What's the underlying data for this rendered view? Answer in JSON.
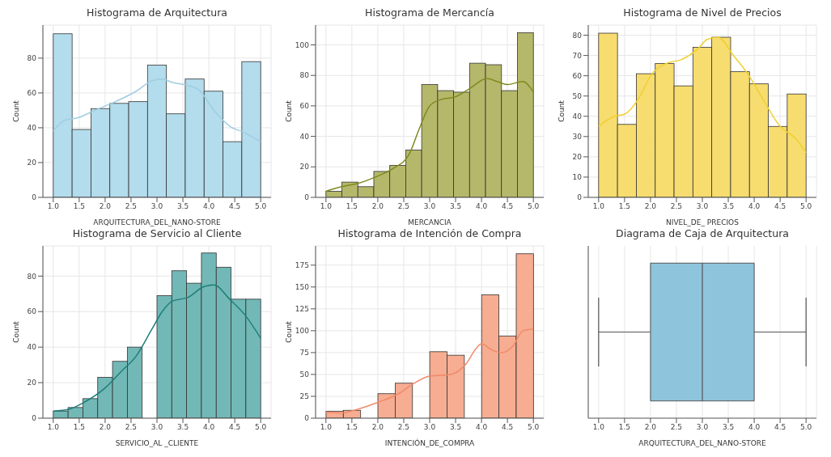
{
  "chart_data": [
    {
      "type": "histogram",
      "title": "Histograma de Arquitectura",
      "xlabel": "ARQUITECTURA_DEL_NANO-STORE",
      "ylabel": "Count",
      "xlim": [
        0.8,
        5.2
      ],
      "xticks": [
        {
          "value": 1,
          "label": "1.0"
        },
        1.5,
        {
          "value": 2,
          "label": "2.0"
        },
        2.5,
        {
          "value": 3,
          "label": "3.0"
        },
        3.5,
        {
          "value": 4,
          "label": "4.0"
        },
        4.5,
        {
          "value": 5,
          "label": "5.0"
        }
      ],
      "ylim": [
        0,
        99
      ],
      "yticks": [
        0,
        20,
        40,
        60,
        80
      ],
      "grid": true,
      "series": [
        {
          "type": "histogram",
          "color": "#b3dcec",
          "bins": [
            1,
            1.364,
            1.727,
            2.091,
            2.455,
            2.818,
            3.182,
            3.545,
            3.909,
            4.273,
            4.636,
            5
          ],
          "values": [
            94,
            39,
            51,
            54,
            55,
            76,
            48,
            68,
            61,
            32,
            78
          ]
        },
        {
          "type": "line",
          "color": "#9fcde2",
          "x": [
            1.0,
            1.2,
            1.5,
            1.8,
            2.2,
            2.6,
            2.9,
            3.1,
            3.3,
            3.5,
            3.8,
            4.1,
            4.4,
            4.7,
            5.0
          ],
          "values": [
            38,
            44,
            46,
            50,
            55,
            61,
            67,
            68,
            66,
            65,
            62,
            50,
            41,
            37,
            32
          ]
        }
      ]
    },
    {
      "type": "histogram",
      "title": "Histograma de Mercancía",
      "xlabel": "MERCANCIA",
      "ylabel": "Count",
      "xlim": [
        0.8,
        5.2
      ],
      "xticks": [
        {
          "value": 1,
          "label": "1.0"
        },
        1.5,
        {
          "value": 2,
          "label": "2.0"
        },
        2.5,
        {
          "value": 3,
          "label": "3.0"
        },
        3.5,
        {
          "value": 4,
          "label": "4.0"
        },
        4.5,
        {
          "value": 5,
          "label": "5.0"
        }
      ],
      "ylim": [
        0,
        113
      ],
      "yticks": [
        0,
        20,
        40,
        60,
        80,
        100
      ],
      "grid": true,
      "series": [
        {
          "type": "histogram",
          "color": "#b5b86a",
          "bins": [
            1,
            1.308,
            1.615,
            1.923,
            2.231,
            2.538,
            2.846,
            3.154,
            3.462,
            3.769,
            4.077,
            4.385,
            4.692,
            5
          ],
          "values": [
            4,
            10,
            7,
            17,
            21,
            31,
            74,
            70,
            69,
            88,
            87,
            70,
            108
          ]
        },
        {
          "type": "line",
          "color": "#7f8a20",
          "x": [
            1.0,
            1.3,
            1.6,
            2.0,
            2.3,
            2.6,
            2.8,
            3.0,
            3.2,
            3.5,
            3.8,
            4.1,
            4.3,
            4.5,
            4.8,
            5.0
          ],
          "values": [
            4,
            7,
            9,
            14,
            19,
            28,
            45,
            60,
            64,
            66,
            72,
            78,
            76,
            74,
            76,
            69
          ]
        }
      ]
    },
    {
      "type": "histogram",
      "title": "Histograma de Nivel de Precios",
      "xlabel": "NIVEL_DE_ PRECIOS",
      "ylabel": "Count",
      "xlim": [
        0.8,
        5.2
      ],
      "xticks": [
        {
          "value": 1,
          "label": "1.0"
        },
        1.5,
        {
          "value": 2,
          "label": "2.0"
        },
        2.5,
        {
          "value": 3,
          "label": "3.0"
        },
        3.5,
        {
          "value": 4,
          "label": "4.0"
        },
        4.5,
        {
          "value": 5,
          "label": "5.0"
        }
      ],
      "ylim": [
        0,
        85
      ],
      "yticks": [
        0,
        10,
        20,
        30,
        40,
        50,
        60,
        70,
        80
      ],
      "grid": true,
      "series": [
        {
          "type": "histogram",
          "color": "#f7dc6f",
          "bins": [
            1,
            1.364,
            1.727,
            2.091,
            2.455,
            2.818,
            3.182,
            3.545,
            3.909,
            4.273,
            4.636,
            5
          ],
          "values": [
            81,
            36,
            61,
            66,
            55,
            74,
            79,
            62,
            56,
            35,
            51
          ]
        },
        {
          "type": "line",
          "color": "#f0d030",
          "x": [
            1.0,
            1.3,
            1.5,
            1.8,
            2.0,
            2.3,
            2.6,
            2.9,
            3.1,
            3.3,
            3.6,
            3.9,
            4.2,
            4.5,
            4.8,
            5.0
          ],
          "values": [
            35,
            40,
            41,
            50,
            60,
            66,
            68,
            73,
            78,
            79,
            70,
            60,
            47,
            35,
            29,
            22
          ]
        }
      ]
    },
    {
      "type": "histogram",
      "title": "Histograma de Servicio al Cliente",
      "xlabel": "SERVICIO_AL _CLIENTE",
      "ylabel": "Count",
      "xlim": [
        0.8,
        5.2
      ],
      "xticks": [
        {
          "value": 1,
          "label": "1.0"
        },
        1.5,
        {
          "value": 2,
          "label": "2.0"
        },
        2.5,
        {
          "value": 3,
          "label": "3.0"
        },
        3.5,
        {
          "value": 4,
          "label": "4.0"
        },
        4.5,
        {
          "value": 5,
          "label": "5.0"
        }
      ],
      "ylim": [
        0,
        97
      ],
      "yticks": [
        0,
        20,
        40,
        60,
        80
      ],
      "grid": true,
      "series": [
        {
          "type": "histogram",
          "color": "#72b8b6",
          "bins": [
            1,
            1.286,
            1.571,
            1.857,
            2.143,
            2.429,
            2.714,
            3,
            3.286,
            3.571,
            3.857,
            4.143,
            4.429,
            4.714,
            5
          ],
          "values": [
            4,
            6,
            11,
            23,
            32,
            40,
            0,
            69,
            83,
            76,
            93,
            85,
            67,
            67
          ]
        },
        {
          "type": "line",
          "color": "#1f7f7a",
          "x": [
            1.0,
            1.3,
            1.6,
            2.0,
            2.3,
            2.6,
            2.9,
            3.1,
            3.3,
            3.6,
            3.9,
            4.1,
            4.4,
            4.7,
            5.0
          ],
          "values": [
            4,
            5,
            9,
            17,
            26,
            35,
            50,
            60,
            66,
            68,
            74,
            75,
            67,
            58,
            45
          ]
        }
      ]
    },
    {
      "type": "histogram",
      "title": "Histograma de Intención de Compra",
      "xlabel": "INTENCIÓN_DE_COMPRA",
      "ylabel": "Count",
      "xlim": [
        0.8,
        5.2
      ],
      "xticks": [
        {
          "value": 1,
          "label": "1.0"
        },
        1.5,
        {
          "value": 2,
          "label": "2.0"
        },
        2.5,
        {
          "value": 3,
          "label": "3.0"
        },
        3.5,
        {
          "value": 4,
          "label": "4.0"
        },
        4.5,
        {
          "value": 5,
          "label": "5.0"
        }
      ],
      "ylim": [
        0,
        197
      ],
      "yticks": [
        0,
        25,
        50,
        75,
        100,
        125,
        150,
        175
      ],
      "grid": true,
      "series": [
        {
          "type": "histogram",
          "color": "#f6ad92",
          "bins": [
            1,
            1.333,
            1.667,
            2,
            2.333,
            2.667,
            3,
            3.333,
            3.667,
            4,
            4.333,
            4.667,
            5
          ],
          "values": [
            8,
            9,
            0,
            28,
            40,
            0,
            76,
            72,
            0,
            141,
            94,
            188
          ]
        },
        {
          "type": "line",
          "color": "#f08a6a",
          "x": [
            1.0,
            1.3,
            1.6,
            2.0,
            2.4,
            2.7,
            3.0,
            3.4,
            3.7,
            3.9,
            4.0,
            4.2,
            4.4,
            4.6,
            4.8,
            5.0
          ],
          "values": [
            7,
            6,
            10,
            18,
            28,
            40,
            48,
            50,
            62,
            80,
            85,
            78,
            75,
            82,
            100,
            102
          ]
        }
      ]
    },
    {
      "type": "box",
      "title": "Diagrama de Caja de Arquitectura",
      "xlabel": "ARQUITECTURA_DEL_NANO-STORE",
      "orientation": "horizontal",
      "categories": [
        null
      ],
      "color": "#8ec4dc",
      "boxes": [
        {
          "low": 1,
          "q1": 2,
          "median": 3,
          "q3": 4,
          "high": 5
        }
      ],
      "xlim": [
        0.8,
        5.2
      ],
      "xticks": [
        {
          "value": 1,
          "label": "1.0"
        },
        1.5,
        {
          "value": 2,
          "label": "2.0"
        },
        2.5,
        {
          "value": 3,
          "label": "3.0"
        },
        3.5,
        {
          "value": 4,
          "label": "4.0"
        },
        4.5,
        {
          "value": 5,
          "label": "5.0"
        }
      ],
      "grid": "x",
      "tick_labels": "x"
    }
  ]
}
